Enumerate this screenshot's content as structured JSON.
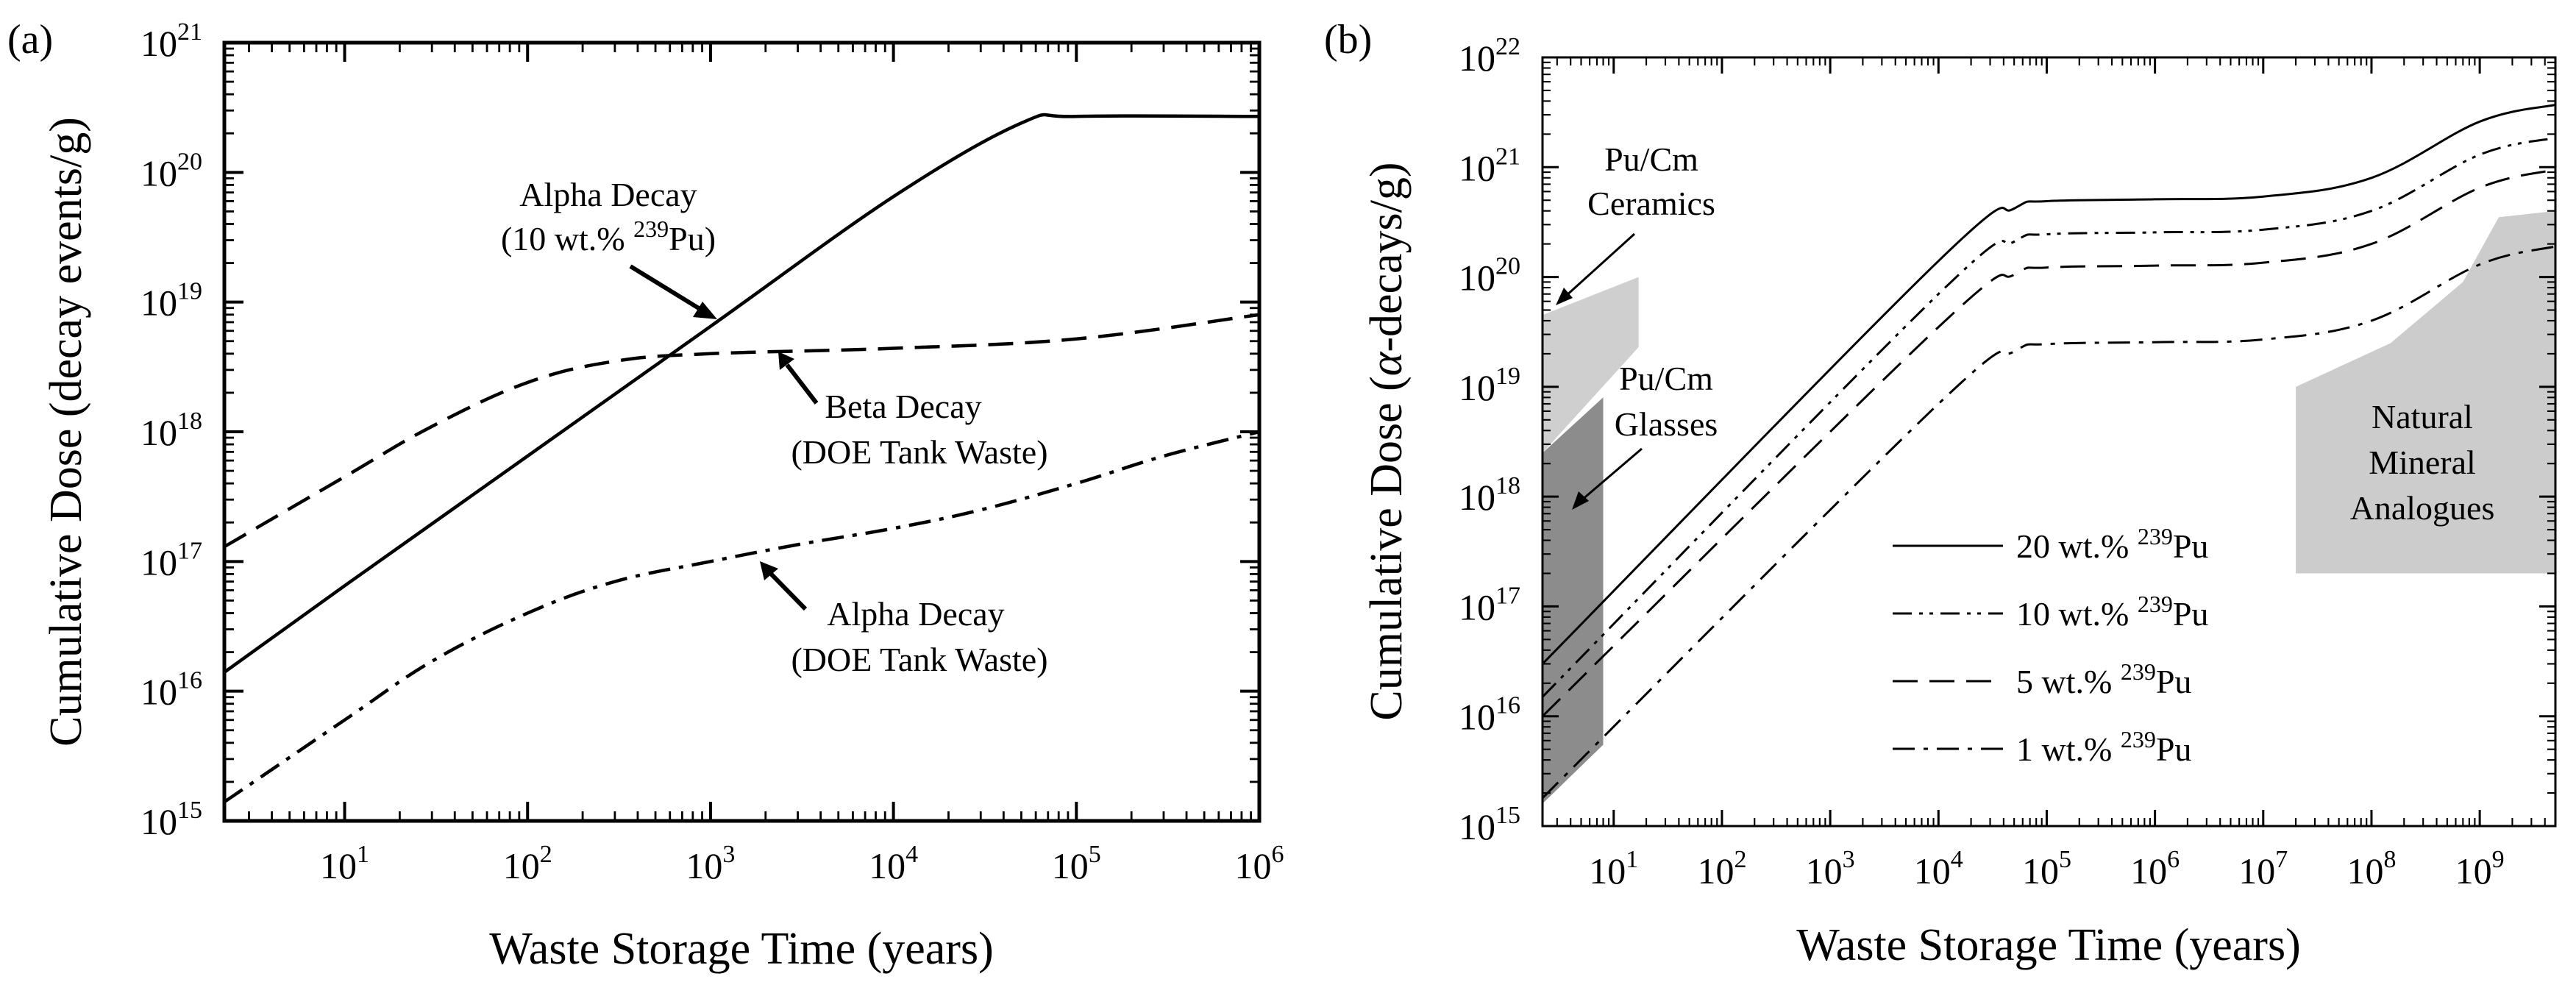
{
  "chart_data": [
    {
      "panel": "(a)",
      "type": "line",
      "xscale": "log",
      "yscale": "log",
      "xlabel": "Waste Storage Time (years)",
      "ylabel": "Cumulative Dose (decay events/g)",
      "xlim": [
        2.2,
        1000000
      ],
      "ylim": [
        1000000000000000.0,
        1e+21
      ],
      "xticks": [
        {
          "exp": "1",
          "value": 10
        },
        {
          "exp": "2",
          "value": 100
        },
        {
          "exp": "3",
          "value": 1000
        },
        {
          "exp": "4",
          "value": 10000
        },
        {
          "exp": "5",
          "value": 100000
        },
        {
          "exp": "6",
          "value": 1000000
        }
      ],
      "yticks": [
        {
          "exp": "15",
          "value": 1000000000000000.0
        },
        {
          "exp": "16",
          "value": 1e+16
        },
        {
          "exp": "17",
          "value": 1e+17
        },
        {
          "exp": "18",
          "value": 1e+18
        },
        {
          "exp": "19",
          "value": 1e+19
        },
        {
          "exp": "20",
          "value": 1e+20
        },
        {
          "exp": "21",
          "value": 1e+21
        }
      ],
      "tick_base": "10",
      "series": [
        {
          "name": "Alpha Decay (10 wt.% 239Pu)",
          "dash": "solid",
          "x": [
            2.2,
            10,
            100,
            1000,
            10000,
            50000,
            100000,
            1000000
          ],
          "y": [
            1.4e+16,
            6.5e+16,
            6.5e+17,
            6.5e+18,
            6.5e+19,
            2.4e+20,
            2.7e+20,
            2.7e+20
          ]
        },
        {
          "name": "Beta Decay (DOE Tank Waste)",
          "dash": "dash",
          "x": [
            2.2,
            10,
            30,
            100,
            300,
            1000,
            10000,
            100000,
            1000000
          ],
          "y": [
            1.3e+17,
            4.5e+17,
            1.1e+18,
            2.4e+18,
            3.5e+18,
            4e+18,
            4.4e+18,
            5.2e+18,
            8e+18
          ]
        },
        {
          "name": "Alpha Decay (DOE Tank Waste)",
          "dash": "dashdot",
          "x": [
            2.2,
            10,
            30,
            100,
            300,
            1000,
            3000,
            10000,
            30000,
            100000,
            300000,
            1000000
          ],
          "y": [
            1400000000000000.0,
            6000000000000000.0,
            1.7e+16,
            4e+16,
            7e+16,
            1e+17,
            1.35e+17,
            1.8e+17,
            2.5e+17,
            4e+17,
            6.5e+17,
            1e+18
          ]
        }
      ],
      "annotations": [
        {
          "lines": [
            "Alpha Decay",
            "(10 wt.% ",
            "239",
            "Pu)"
          ],
          "target": {
            "x": 1000,
            "y": 6.5e+18
          }
        },
        {
          "lines": [
            "Beta Decay",
            "(DOE Tank Waste)"
          ],
          "target": {
            "x": 1800,
            "y": 4.1e+18
          }
        },
        {
          "lines": [
            "Alpha Decay",
            "(DOE Tank Waste)"
          ],
          "target": {
            "x": 1600,
            "y": 1.25e+17
          }
        }
      ]
    },
    {
      "panel": "(b)",
      "type": "line",
      "xscale": "log",
      "yscale": "log",
      "xlabel": "Waste Storage Time (years)",
      "ylabel_pre": "Cumulative Dose (",
      "ylabel_alpha": "α",
      "ylabel_post": "-decays/g)",
      "xlim": [
        2.2,
        5000000000
      ],
      "ylim": [
        1000000000000000.0,
        1e+22
      ],
      "xticks": [
        {
          "exp": "1",
          "value": 10
        },
        {
          "exp": "2",
          "value": 100
        },
        {
          "exp": "3",
          "value": 1000
        },
        {
          "exp": "4",
          "value": 10000
        },
        {
          "exp": "5",
          "value": 100000
        },
        {
          "exp": "6",
          "value": 1000000
        },
        {
          "exp": "7",
          "value": 10000000
        },
        {
          "exp": "8",
          "value": 100000000
        },
        {
          "exp": "9",
          "value": 1000000000
        }
      ],
      "yticks": [
        {
          "exp": "15",
          "value": 1000000000000000.0
        },
        {
          "exp": "16",
          "value": 1e+16
        },
        {
          "exp": "17",
          "value": 1e+17
        },
        {
          "exp": "18",
          "value": 1e+18
        },
        {
          "exp": "19",
          "value": 1e+19
        },
        {
          "exp": "20",
          "value": 1e+20
        },
        {
          "exp": "21",
          "value": 1e+21
        },
        {
          "exp": "22",
          "value": 1e+22
        }
      ],
      "tick_base": "10",
      "series": [
        {
          "name": "20 wt.% 239Pu",
          "dash": "solid",
          "x": [
            2.2,
            10000,
            50000,
            100000,
            1000000,
            10000000,
            100000000,
            1000000000,
            5000000000
          ],
          "y": [
            3e+16,
            1.4e+20,
            4.2e+20,
            4.9e+20,
            5.1e+20,
            5.4e+20,
            8e+20,
            2.6e+21,
            3.7e+21
          ]
        },
        {
          "name": "10 wt.% 239Pu",
          "dash": "dashdotdot",
          "x": [
            2.2,
            10000,
            50000,
            100000,
            1000000,
            10000000,
            100000000,
            1000000000,
            5000000000
          ],
          "y": [
            1.5e+16,
            7e+19,
            2.1e+20,
            2.45e+20,
            2.55e+20,
            2.7e+20,
            4e+20,
            1.3e+21,
            1.85e+21
          ]
        },
        {
          "name": "5 wt.% 239Pu",
          "dash": "dash",
          "x": [
            2.2,
            10000,
            50000,
            100000,
            1000000,
            10000000,
            100000000,
            1000000000,
            5000000000
          ],
          "y": [
            1e+16,
            3.5e+19,
            1.05e+20,
            1.22e+20,
            1.27e+20,
            1.35e+20,
            2e+20,
            6.5e+20,
            9.5e+20
          ]
        },
        {
          "name": "1 wt.% 239Pu",
          "dash": "dashdot",
          "x": [
            2.2,
            10000,
            50000,
            100000,
            1000000,
            10000000,
            100000000,
            1000000000,
            5000000000
          ],
          "y": [
            1800000000000000.0,
            7e+18,
            2.1e+19,
            2.45e+19,
            2.55e+19,
            2.7e+19,
            4e+19,
            1.3e+20,
            1.9e+20
          ]
        }
      ],
      "legend": {
        "placement": "lower-center",
        "entries": [
          {
            "label": "20 wt.% ",
            "sup": "239",
            "tail": "Pu",
            "dash": "solid"
          },
          {
            "label": "10 wt.% ",
            "sup": "239",
            "tail": "Pu",
            "dash": "dashdotdot"
          },
          {
            "label": "5 wt.% ",
            "sup": "239",
            "tail": "Pu",
            "dash": "dash"
          },
          {
            "label": "1 wt.% ",
            "sup": "239",
            "tail": "Pu",
            "dash": "dashdot"
          }
        ]
      },
      "regions": [
        {
          "name": "Pu/Cm Ceramics",
          "color": "#cfcfcf",
          "x": [
            2.2,
            17,
            17,
            2.2
          ],
          "y": [
            4.5e+19,
            1e+20,
            2.3e+19,
            2.5e+18
          ]
        },
        {
          "name": "Pu/Cm Glasses",
          "color": "#8c8c8c",
          "x": [
            2.2,
            8,
            8,
            2.2
          ],
          "y": [
            2.5e+18,
            8e+18,
            5500000000000000.0,
            1600000000000000.0
          ]
        },
        {
          "name": "Natural Mineral Analogues",
          "color": "#cccccc",
          "x": [
            20000000,
            150000000,
            700000000,
            1500000000,
            5000000000,
            5000000000,
            20000000
          ],
          "y": [
            1e+19,
            2.5e+19,
            9e+19,
            3.5e+20,
            4e+20,
            2e+17,
            2e+17
          ]
        }
      ],
      "annotations": [
        {
          "lines": [
            "Pu/Cm",
            "Ceramics"
          ],
          "target": {
            "x": 5,
            "y": 4e+19
          }
        },
        {
          "lines": [
            "Pu/Cm",
            "Glasses"
          ],
          "target": {
            "x": 6,
            "y": 1.2e+18
          }
        },
        {
          "lines": [
            "Natural",
            "Mineral",
            "Analogues"
          ],
          "target": null
        }
      ]
    }
  ]
}
